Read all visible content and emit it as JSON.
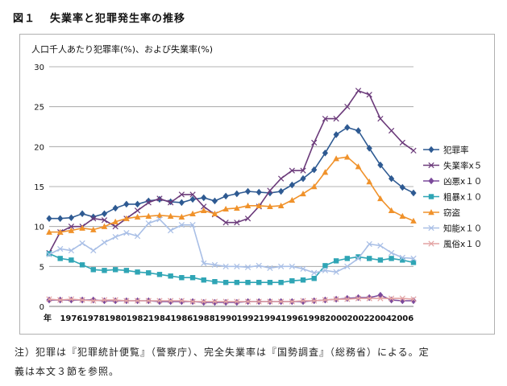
{
  "figure": {
    "number": "図１",
    "title": "失業率と犯罪発生率の推移"
  },
  "note": {
    "line1": "注）犯罪は『犯罪統計便覧』（警察庁）、完全失業率は『国勢調査』（総務省）による。定",
    "line2": "義は本文３節を参照。"
  },
  "chart_data": {
    "type": "line",
    "ylabel": "人口千人あたり犯罪率(%)、および失業率(%)",
    "xlabel": "年",
    "ylim": [
      0,
      30
    ],
    "y_ticks": [
      "0",
      "5",
      "10",
      "15",
      "20",
      "25",
      "30"
    ],
    "x_tick_labels": [
      "1976",
      "1978",
      "1980",
      "1982",
      "1984",
      "1986",
      "1988",
      "1990",
      "1992",
      "1994",
      "1996",
      "1998",
      "2000",
      "2002",
      "2004",
      "2006"
    ],
    "x_tick_years": [
      1976,
      1978,
      1980,
      1982,
      1984,
      1986,
      1988,
      1990,
      1992,
      1994,
      1996,
      1998,
      2000,
      2002,
      2004,
      2006
    ],
    "xlim": [
      1974,
      2007
    ],
    "grid": "horizontal",
    "legend_position": "right",
    "years": [
      1974,
      1975,
      1976,
      1977,
      1978,
      1979,
      1980,
      1981,
      1982,
      1983,
      1984,
      1985,
      1986,
      1987,
      1988,
      1989,
      1990,
      1991,
      1992,
      1993,
      1994,
      1995,
      1996,
      1997,
      1998,
      1999,
      2000,
      2001,
      2002,
      2003,
      2004,
      2005,
      2006,
      2007
    ],
    "series": [
      {
        "name": "犯罪率",
        "color": "#2e5a92",
        "marker": "diamond",
        "values": [
          11.0,
          11.0,
          11.1,
          11.6,
          11.2,
          11.6,
          12.3,
          12.8,
          12.8,
          13.2,
          13.4,
          13.1,
          13.0,
          13.4,
          13.6,
          13.2,
          13.8,
          14.1,
          14.4,
          14.3,
          14.2,
          14.4,
          15.2,
          16.0,
          17.1,
          19.2,
          21.5,
          22.4,
          22.0,
          19.8,
          17.7,
          16.0,
          14.9,
          14.2
        ]
      },
      {
        "name": "失業率x５",
        "color": "#6b3a7a",
        "marker": "x",
        "values": [
          6.7,
          9.3,
          10.0,
          10.0,
          11.0,
          10.8,
          10.0,
          11.0,
          12.0,
          13.0,
          13.5,
          13.0,
          14.0,
          14.0,
          12.5,
          11.5,
          10.5,
          10.5,
          11.0,
          12.5,
          14.5,
          16.0,
          17.0,
          17.0,
          20.5,
          23.5,
          23.5,
          25.0,
          27.0,
          26.5,
          23.5,
          22.0,
          20.5,
          19.5
        ]
      },
      {
        "name": "凶悪x１０",
        "color": "#7b4a9b",
        "marker": "diamond",
        "values": [
          0.8,
          0.8,
          0.8,
          0.8,
          0.8,
          0.7,
          0.7,
          0.7,
          0.7,
          0.7,
          0.6,
          0.6,
          0.6,
          0.6,
          0.5,
          0.5,
          0.5,
          0.5,
          0.6,
          0.6,
          0.6,
          0.6,
          0.6,
          0.6,
          0.7,
          0.8,
          0.9,
          1.0,
          1.1,
          1.1,
          1.4,
          0.8,
          0.7,
          0.7
        ]
      },
      {
        "name": "粗暴x１０",
        "color": "#2fa5b5",
        "marker": "square",
        "values": [
          6.6,
          6.0,
          5.8,
          5.2,
          4.6,
          4.5,
          4.6,
          4.5,
          4.3,
          4.2,
          4.0,
          3.8,
          3.6,
          3.6,
          3.3,
          3.1,
          3.0,
          3.0,
          3.0,
          3.0,
          3.0,
          3.0,
          3.2,
          3.3,
          3.5,
          5.1,
          5.7,
          6.0,
          6.2,
          6.0,
          5.8,
          6.0,
          5.8,
          5.5
        ]
      },
      {
        "name": "窃盗",
        "color": "#f0922b",
        "marker": "triangle",
        "values": [
          9.3,
          9.3,
          9.5,
          9.8,
          9.6,
          10.0,
          10.6,
          11.0,
          11.2,
          11.3,
          11.4,
          11.3,
          11.2,
          11.6,
          12.0,
          11.6,
          12.2,
          12.3,
          12.6,
          12.6,
          12.5,
          12.6,
          13.3,
          14.1,
          15.0,
          16.8,
          18.5,
          18.7,
          17.5,
          15.6,
          13.5,
          12.0,
          11.3,
          10.7
        ]
      },
      {
        "name": "知能x１０",
        "color": "#a9bfe6",
        "marker": "x",
        "values": [
          6.5,
          7.2,
          7.0,
          7.9,
          7.0,
          8.0,
          8.7,
          9.2,
          8.8,
          10.4,
          10.9,
          9.5,
          10.2,
          10.2,
          5.4,
          5.2,
          5.0,
          5.0,
          4.9,
          5.1,
          4.8,
          5.0,
          5.0,
          4.7,
          4.2,
          4.5,
          4.3,
          5.0,
          6.0,
          7.8,
          7.6,
          6.7,
          6.1,
          6.0
        ]
      },
      {
        "name": "風俗x１０",
        "color": "#e3a3a3",
        "marker": "x",
        "values": [
          0.9,
          0.8,
          0.9,
          0.8,
          0.7,
          0.8,
          0.8,
          0.7,
          0.7,
          0.7,
          0.7,
          0.7,
          0.7,
          0.6,
          0.6,
          0.6,
          0.6,
          0.6,
          0.6,
          0.6,
          0.6,
          0.6,
          0.6,
          0.7,
          0.7,
          0.8,
          0.9,
          0.9,
          1.0,
          1.0,
          1.0,
          1.0,
          1.0,
          0.9
        ]
      }
    ]
  }
}
